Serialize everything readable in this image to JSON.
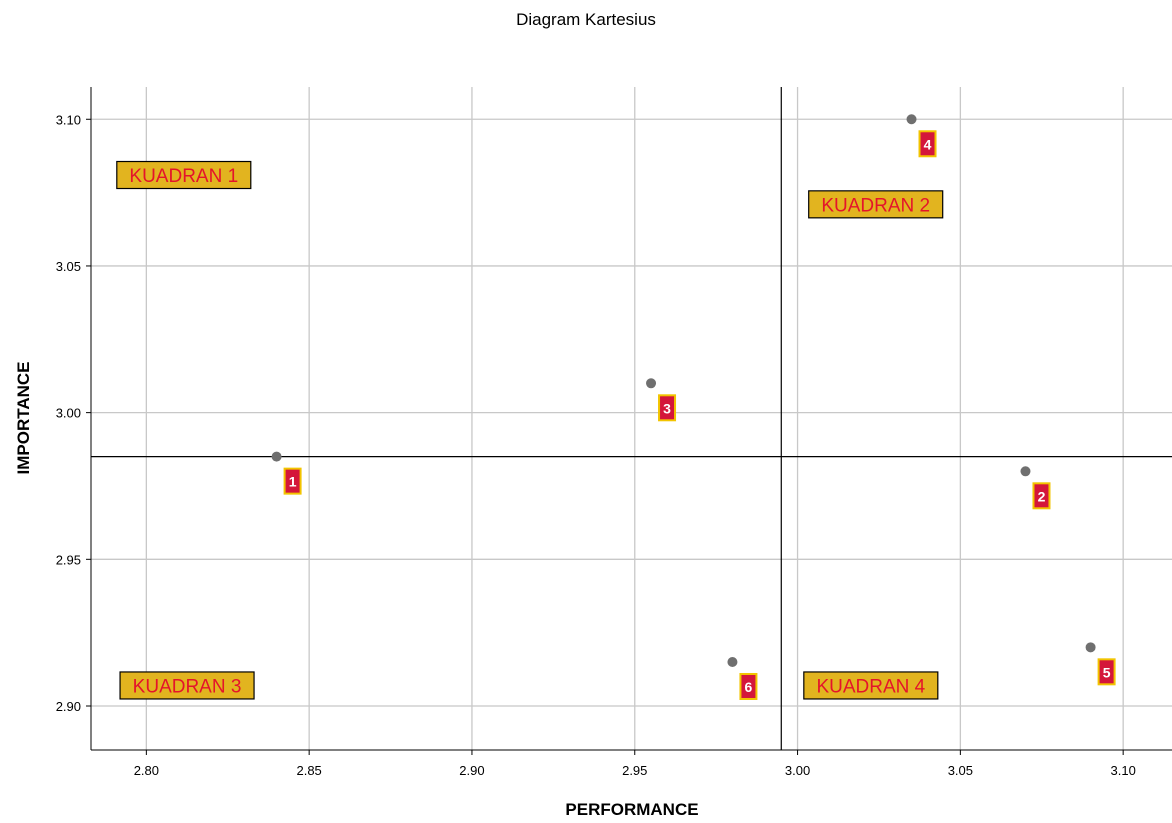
{
  "chart_data": {
    "type": "scatter",
    "title": "Diagram Kartesius",
    "xlabel": "PERFORMANCE",
    "ylabel": "IMPORTANCE",
    "xlim": [
      2.783,
      3.115
    ],
    "ylim": [
      2.885,
      3.111
    ],
    "x_ticks": [
      "2.80",
      "2.85",
      "2.90",
      "2.95",
      "3.00",
      "3.05",
      "3.10"
    ],
    "y_ticks": [
      "2.90",
      "2.95",
      "3.00",
      "3.05",
      "3.10"
    ],
    "grid": true,
    "reference_lines": {
      "x": 2.995,
      "y": 2.985
    },
    "points": [
      {
        "label": "1",
        "x": 2.84,
        "y": 2.985
      },
      {
        "label": "2",
        "x": 3.07,
        "y": 2.98
      },
      {
        "label": "3",
        "x": 2.955,
        "y": 3.01
      },
      {
        "label": "4",
        "x": 3.035,
        "y": 3.1
      },
      {
        "label": "5",
        "x": 3.09,
        "y": 2.92
      },
      {
        "label": "6",
        "x": 2.98,
        "y": 2.915
      }
    ],
    "quadrant_labels": [
      {
        "text": "KUADRAN 1",
        "x": 2.8115,
        "y": 3.081
      },
      {
        "text": "KUADRAN 2",
        "x": 3.024,
        "y": 3.071
      },
      {
        "text": "KUADRAN 3",
        "x": 2.8125,
        "y": 2.907
      },
      {
        "text": "KUADRAN 4",
        "x": 3.0225,
        "y": 2.907
      }
    ],
    "colors": {
      "point": "#6f6f6f",
      "point_label_fill": "#d4163a",
      "point_label_border": "#f2c400",
      "quadrant_fill": "#e2b41f",
      "quadrant_text": "#e4142b",
      "grid": "#c8c8c8",
      "reference_line": "#000000"
    }
  }
}
